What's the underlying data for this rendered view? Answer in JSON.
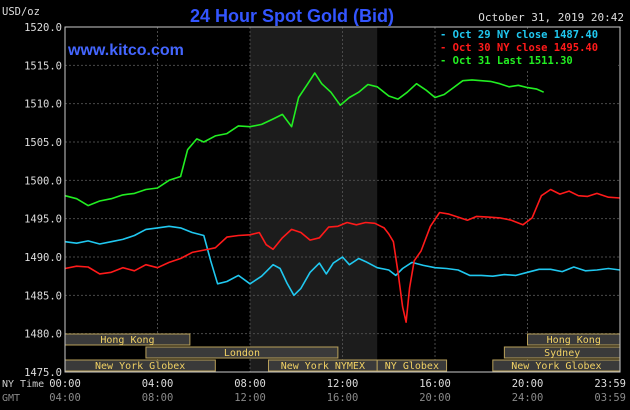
{
  "header": {
    "unit": "USD/oz",
    "timestamp": "October 31, 2019 20:42",
    "watermark": "www.kitco.com",
    "ny_time_label": "NY Time",
    "gmt_label": "GMT"
  },
  "chart_data": {
    "type": "line",
    "title": "24 Hour Spot Gold (Bid)",
    "xlabel": "",
    "ylabel": "USD/oz",
    "x_unit": "hours",
    "xlim": [
      0,
      24
    ],
    "ylim": [
      1475,
      1520
    ],
    "yticks": [
      1475,
      1480,
      1485,
      1490,
      1495,
      1500,
      1505,
      1510,
      1515,
      1520
    ],
    "ytick_labels": [
      "1475.0",
      "1480.0",
      "1485.0",
      "1490.0",
      "1495.0",
      "1500.0",
      "1505.0",
      "1510.0",
      "1515.0",
      "1520.0"
    ],
    "xticks": [
      0,
      4,
      8,
      12,
      16,
      20,
      24
    ],
    "xtick_labels_ny": [
      "00:00",
      "04:00",
      "08:00",
      "12:00",
      "16:00",
      "20:00",
      "23:59"
    ],
    "xtick_labels_gmt": [
      "04:00",
      "08:00",
      "12:00",
      "16:00",
      "20:00",
      "24:00",
      "03:59"
    ],
    "grid": true,
    "legend_position": "top-right",
    "highlight_band": [
      8,
      13.5
    ],
    "colors": {
      "background": "#000000",
      "frame": "#cccccc",
      "grid": "#4a4a4a",
      "title": "#3355ff",
      "watermark": "#4466ff",
      "band": "#1c1c1c",
      "session_fill": "#3a3a3a",
      "session_stroke": "#b8a05a",
      "session_text": "#f2d264"
    },
    "series": [
      {
        "name": "Oct 29 NY close 1487.40",
        "color": "#20c8f0",
        "points": [
          [
            0,
            1492.0
          ],
          [
            0.5,
            1491.8
          ],
          [
            1,
            1492.1
          ],
          [
            1.5,
            1491.7
          ],
          [
            2,
            1492.0
          ],
          [
            2.5,
            1492.3
          ],
          [
            3,
            1492.8
          ],
          [
            3.5,
            1493.6
          ],
          [
            4,
            1493.8
          ],
          [
            4.5,
            1494.0
          ],
          [
            5,
            1493.8
          ],
          [
            5.5,
            1493.2
          ],
          [
            6,
            1492.8
          ],
          [
            6.3,
            1489.5
          ],
          [
            6.6,
            1486.5
          ],
          [
            7,
            1486.8
          ],
          [
            7.5,
            1487.6
          ],
          [
            8,
            1486.5
          ],
          [
            8.5,
            1487.5
          ],
          [
            9,
            1489.0
          ],
          [
            9.3,
            1488.5
          ],
          [
            9.6,
            1486.6
          ],
          [
            9.9,
            1485.0
          ],
          [
            10.2,
            1485.9
          ],
          [
            10.6,
            1488.0
          ],
          [
            11,
            1489.2
          ],
          [
            11.3,
            1487.8
          ],
          [
            11.6,
            1489.2
          ],
          [
            12,
            1490.0
          ],
          [
            12.3,
            1489.0
          ],
          [
            12.7,
            1489.8
          ],
          [
            13,
            1489.4
          ],
          [
            13.5,
            1488.6
          ],
          [
            14,
            1488.3
          ],
          [
            14.3,
            1487.6
          ],
          [
            14.6,
            1488.5
          ],
          [
            15,
            1489.3
          ],
          [
            15.5,
            1488.9
          ],
          [
            16,
            1488.6
          ],
          [
            16.5,
            1488.5
          ],
          [
            17,
            1488.3
          ],
          [
            17.5,
            1487.6
          ],
          [
            18,
            1487.6
          ],
          [
            18.5,
            1487.5
          ],
          [
            19,
            1487.7
          ],
          [
            19.5,
            1487.6
          ],
          [
            20,
            1488.0
          ],
          [
            20.5,
            1488.4
          ],
          [
            21,
            1488.4
          ],
          [
            21.5,
            1488.1
          ],
          [
            22,
            1488.7
          ],
          [
            22.5,
            1488.2
          ],
          [
            23,
            1488.3
          ],
          [
            23.5,
            1488.5
          ],
          [
            24,
            1488.3
          ]
        ]
      },
      {
        "name": "Oct 30 NY close 1495.40",
        "color": "#ff1a1a",
        "points": [
          [
            0,
            1488.5
          ],
          [
            0.5,
            1488.8
          ],
          [
            1,
            1488.7
          ],
          [
            1.5,
            1487.8
          ],
          [
            2,
            1488.0
          ],
          [
            2.5,
            1488.6
          ],
          [
            3,
            1488.2
          ],
          [
            3.5,
            1489.0
          ],
          [
            4,
            1488.6
          ],
          [
            4.5,
            1489.3
          ],
          [
            5,
            1489.8
          ],
          [
            5.5,
            1490.6
          ],
          [
            6,
            1490.9
          ],
          [
            6.5,
            1491.2
          ],
          [
            7,
            1492.6
          ],
          [
            7.5,
            1492.8
          ],
          [
            8,
            1492.9
          ],
          [
            8.4,
            1493.2
          ],
          [
            8.7,
            1491.6
          ],
          [
            9,
            1491.0
          ],
          [
            9.4,
            1492.5
          ],
          [
            9.8,
            1493.6
          ],
          [
            10.2,
            1493.2
          ],
          [
            10.6,
            1492.2
          ],
          [
            11,
            1492.5
          ],
          [
            11.4,
            1493.9
          ],
          [
            11.8,
            1494.0
          ],
          [
            12.2,
            1494.5
          ],
          [
            12.6,
            1494.2
          ],
          [
            13,
            1494.5
          ],
          [
            13.4,
            1494.4
          ],
          [
            13.8,
            1493.8
          ],
          [
            14,
            1493.0
          ],
          [
            14.2,
            1492.0
          ],
          [
            14.4,
            1488.0
          ],
          [
            14.6,
            1483.5
          ],
          [
            14.75,
            1481.5
          ],
          [
            14.9,
            1486.0
          ],
          [
            15.1,
            1489.5
          ],
          [
            15.4,
            1490.8
          ],
          [
            15.8,
            1494.0
          ],
          [
            16.2,
            1495.8
          ],
          [
            16.6,
            1495.6
          ],
          [
            17,
            1495.2
          ],
          [
            17.4,
            1494.8
          ],
          [
            17.8,
            1495.3
          ],
          [
            18.3,
            1495.2
          ],
          [
            18.8,
            1495.1
          ],
          [
            19.3,
            1494.8
          ],
          [
            19.8,
            1494.2
          ],
          [
            20.2,
            1495.1
          ],
          [
            20.6,
            1498.0
          ],
          [
            21,
            1498.8
          ],
          [
            21.4,
            1498.2
          ],
          [
            21.8,
            1498.6
          ],
          [
            22.2,
            1498.0
          ],
          [
            22.6,
            1497.9
          ],
          [
            23,
            1498.3
          ],
          [
            23.5,
            1497.8
          ],
          [
            24,
            1497.7
          ]
        ]
      },
      {
        "name": "Oct 31 Last 1511.30",
        "color": "#22ee22",
        "points": [
          [
            0,
            1498.0
          ],
          [
            0.5,
            1497.6
          ],
          [
            1,
            1496.7
          ],
          [
            1.5,
            1497.3
          ],
          [
            2,
            1497.6
          ],
          [
            2.5,
            1498.1
          ],
          [
            3,
            1498.3
          ],
          [
            3.5,
            1498.8
          ],
          [
            4,
            1499.0
          ],
          [
            4.5,
            1500.0
          ],
          [
            5,
            1500.5
          ],
          [
            5.3,
            1504.0
          ],
          [
            5.7,
            1505.4
          ],
          [
            6,
            1505.0
          ],
          [
            6.5,
            1505.8
          ],
          [
            7,
            1506.1
          ],
          [
            7.5,
            1507.1
          ],
          [
            8,
            1507.0
          ],
          [
            8.5,
            1507.3
          ],
          [
            9,
            1508.0
          ],
          [
            9.4,
            1508.6
          ],
          [
            9.8,
            1507.0
          ],
          [
            10.1,
            1510.8
          ],
          [
            10.5,
            1512.6
          ],
          [
            10.8,
            1514.0
          ],
          [
            11.1,
            1512.6
          ],
          [
            11.5,
            1511.5
          ],
          [
            11.9,
            1509.8
          ],
          [
            12.3,
            1510.8
          ],
          [
            12.7,
            1511.5
          ],
          [
            13.1,
            1512.5
          ],
          [
            13.5,
            1512.2
          ],
          [
            14,
            1511.0
          ],
          [
            14.4,
            1510.6
          ],
          [
            14.8,
            1511.5
          ],
          [
            15.2,
            1512.6
          ],
          [
            15.6,
            1511.8
          ],
          [
            16,
            1510.8
          ],
          [
            16.4,
            1511.2
          ],
          [
            16.8,
            1512.1
          ],
          [
            17.2,
            1513.0
          ],
          [
            17.6,
            1513.1
          ],
          [
            18,
            1513.0
          ],
          [
            18.4,
            1512.9
          ],
          [
            18.8,
            1512.6
          ],
          [
            19.2,
            1512.2
          ],
          [
            19.6,
            1512.4
          ],
          [
            20,
            1512.1
          ],
          [
            20.4,
            1511.9
          ],
          [
            20.7,
            1511.5
          ]
        ]
      }
    ],
    "sessions": [
      {
        "label": "Hong Kong",
        "start": 0,
        "end": 5.4,
        "row": 0
      },
      {
        "label": "London",
        "start": 3.5,
        "end": 11.8,
        "row": 1
      },
      {
        "label": "New York Globex",
        "start": 0,
        "end": 6.5,
        "row": 2
      },
      {
        "label": "New York NYMEX",
        "start": 8.8,
        "end": 13.5,
        "row": 2
      },
      {
        "label": "NY Globex",
        "start": 13.5,
        "end": 16.5,
        "row": 2
      },
      {
        "label": "Hong Kong",
        "start": 20.0,
        "end": 24,
        "row": 0
      },
      {
        "label": "Sydney",
        "start": 19.0,
        "end": 24,
        "row": 1
      },
      {
        "label": "New York Globex",
        "start": 18.5,
        "end": 24,
        "row": 2
      }
    ]
  }
}
